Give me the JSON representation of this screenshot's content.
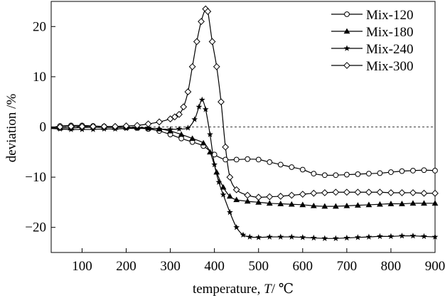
{
  "chart_data": {
    "type": "line",
    "xlabel": "temperature, ",
    "xlabel_symbol": "T",
    "xlabel_unit": "/ ℃",
    "ylabel": "deviation /%",
    "xlim": [
      30,
      900
    ],
    "ylim": [
      -25,
      25
    ],
    "xticks": [
      100,
      200,
      300,
      400,
      500,
      600,
      700,
      800,
      900
    ],
    "yticks": [
      -20,
      -10,
      0,
      10,
      20
    ],
    "reference_line": 0,
    "legend_position": "top-right",
    "series": [
      {
        "name": "Mix-120",
        "marker": "circle",
        "x": [
          30,
          50,
          75,
          100,
          125,
          150,
          175,
          200,
          225,
          250,
          275,
          300,
          325,
          350,
          375,
          400,
          425,
          450,
          475,
          500,
          525,
          550,
          575,
          600,
          625,
          650,
          675,
          700,
          725,
          750,
          775,
          800,
          825,
          850,
          875,
          900
        ],
        "y": [
          -0.2,
          0.2,
          0.3,
          0.3,
          0.2,
          0.1,
          0,
          -0.1,
          -0.2,
          -0.4,
          -0.8,
          -1.5,
          -2.3,
          -3,
          -3.8,
          -5.5,
          -6.5,
          -6.5,
          -6.4,
          -6.5,
          -7,
          -7.5,
          -8,
          -8.5,
          -9.3,
          -9.6,
          -9.6,
          -9.5,
          -9.4,
          -9.3,
          -9.2,
          -9.0,
          -8.8,
          -8.7,
          -8.6,
          -8.7
        ]
      },
      {
        "name": "Mix-180",
        "marker": "triangle",
        "x": [
          30,
          50,
          75,
          100,
          125,
          150,
          175,
          200,
          225,
          250,
          275,
          300,
          325,
          350,
          375,
          390,
          405,
          420,
          435,
          450,
          475,
          500,
          525,
          550,
          575,
          600,
          625,
          650,
          675,
          700,
          725,
          750,
          775,
          800,
          825,
          850,
          875,
          900
        ],
        "y": [
          -0.2,
          -0.2,
          -0.2,
          -0.1,
          -0.1,
          -0.1,
          -0.1,
          -0.1,
          -0.1,
          -0.2,
          -0.4,
          -0.8,
          -1.5,
          -2.3,
          -3.2,
          -5,
          -9,
          -12,
          -13.8,
          -14.5,
          -14.8,
          -15,
          -15.2,
          -15.3,
          -15.4,
          -15.5,
          -15.7,
          -15.8,
          -15.8,
          -15.7,
          -15.6,
          -15.5,
          -15.4,
          -15.3,
          -15.3,
          -15.2,
          -15.2,
          -15.2
        ]
      },
      {
        "name": "Mix-240",
        "marker": "star",
        "x": [
          30,
          50,
          75,
          100,
          125,
          150,
          175,
          200,
          225,
          250,
          275,
          300,
          320,
          340,
          355,
          365,
          372,
          380,
          390,
          400,
          410,
          420,
          435,
          450,
          465,
          480,
          500,
          525,
          550,
          575,
          600,
          625,
          650,
          675,
          700,
          725,
          750,
          775,
          800,
          825,
          850,
          875,
          900
        ],
        "y": [
          -0.3,
          -0.4,
          -0.5,
          -0.5,
          -0.5,
          -0.4,
          -0.4,
          -0.3,
          -0.3,
          -0.3,
          -0.4,
          -0.5,
          -0.4,
          -0.2,
          1.5,
          4,
          5.4,
          3.5,
          -1.5,
          -7.5,
          -11,
          -13.5,
          -17,
          -20,
          -21.5,
          -21.9,
          -22,
          -21.9,
          -21.9,
          -21.9,
          -22,
          -22.1,
          -22.2,
          -22.2,
          -22.1,
          -22,
          -21.9,
          -21.8,
          -21.8,
          -21.7,
          -21.7,
          -21.8,
          -21.9
        ]
      },
      {
        "name": "Mix-300",
        "marker": "diamond",
        "x": [
          30,
          50,
          75,
          100,
          125,
          150,
          175,
          200,
          225,
          250,
          275,
          300,
          310,
          320,
          330,
          340,
          350,
          360,
          370,
          380,
          385,
          395,
          405,
          415,
          425,
          435,
          450,
          475,
          500,
          525,
          550,
          575,
          600,
          625,
          650,
          675,
          700,
          725,
          750,
          775,
          800,
          825,
          850,
          875,
          900
        ],
        "y": [
          0,
          0,
          0.1,
          0.1,
          0.1,
          0.1,
          0.1,
          0.2,
          0.3,
          0.6,
          1,
          1.6,
          2,
          2.5,
          4,
          7,
          12,
          17,
          21,
          23.5,
          23,
          17,
          12,
          5,
          -4,
          -10,
          -12.5,
          -13.6,
          -14,
          -13.9,
          -13.8,
          -13.6,
          -13.4,
          -13.2,
          -13.1,
          -13,
          -13,
          -13,
          -13,
          -13,
          -13.1,
          -13.1,
          -13.1,
          -13.2,
          -13.2
        ]
      }
    ]
  }
}
